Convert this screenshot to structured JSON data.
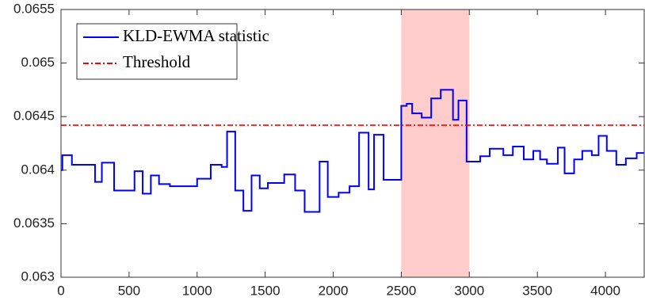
{
  "chart_data": {
    "type": "line",
    "xlim": [
      0,
      4285
    ],
    "ylim": [
      0.063,
      0.0655
    ],
    "xticks": [
      0,
      500,
      1000,
      1500,
      2000,
      2500,
      3000,
      3500,
      4000
    ],
    "yticks": [
      0.063,
      0.0635,
      0.064,
      0.0645,
      0.065,
      0.0655
    ],
    "highlight": {
      "xrange": [
        2500,
        3000
      ],
      "color": "#ffcccc"
    },
    "legend": "upper left",
    "series": [
      {
        "name": "KLD-EWMA statistic",
        "color": "#0000ff",
        "style": "solid",
        "x": [
          0,
          10,
          10,
          80,
          80,
          250,
          250,
          300,
          300,
          390,
          390,
          540,
          540,
          600,
          600,
          660,
          660,
          720,
          720,
          800,
          800,
          1000,
          1000,
          1100,
          1100,
          1180,
          1180,
          1220,
          1220,
          1280,
          1280,
          1340,
          1340,
          1400,
          1400,
          1460,
          1460,
          1520,
          1520,
          1640,
          1640,
          1720,
          1720,
          1790,
          1790,
          1900,
          1900,
          1960,
          1960,
          2040,
          2040,
          2120,
          2120,
          2190,
          2190,
          2260,
          2260,
          2300,
          2300,
          2370,
          2370,
          2500,
          2500,
          2540,
          2540,
          2580,
          2580,
          2650,
          2650,
          2720,
          2720,
          2790,
          2790,
          2880,
          2880,
          2920,
          2920,
          2980,
          2980,
          3080,
          3080,
          3150,
          3150,
          3250,
          3250,
          3320,
          3320,
          3400,
          3400,
          3470,
          3470,
          3520,
          3520,
          3570,
          3570,
          3650,
          3650,
          3700,
          3700,
          3770,
          3770,
          3830,
          3830,
          3900,
          3900,
          3950,
          3950,
          4010,
          4010,
          4080,
          4080,
          4150,
          4150,
          4230,
          4230,
          4285
        ],
        "values": [
          0.064,
          0.064,
          0.06414,
          0.06414,
          0.06405,
          0.06405,
          0.06389,
          0.06389,
          0.06407,
          0.06407,
          0.06381,
          0.06381,
          0.06399,
          0.06399,
          0.06378,
          0.06378,
          0.06395,
          0.06395,
          0.06387,
          0.06387,
          0.06385,
          0.06385,
          0.06392,
          0.06392,
          0.06405,
          0.06405,
          0.06403,
          0.06403,
          0.06436,
          0.06436,
          0.06381,
          0.06381,
          0.06362,
          0.06362,
          0.06395,
          0.06395,
          0.06383,
          0.06383,
          0.06388,
          0.06388,
          0.06396,
          0.06396,
          0.06381,
          0.06381,
          0.06361,
          0.06361,
          0.06408,
          0.06408,
          0.06375,
          0.06375,
          0.06379,
          0.06379,
          0.06385,
          0.06385,
          0.06435,
          0.06435,
          0.06382,
          0.06382,
          0.06433,
          0.06433,
          0.06391,
          0.06391,
          0.0646,
          0.0646,
          0.06462,
          0.06462,
          0.06453,
          0.06453,
          0.06449,
          0.06449,
          0.06467,
          0.06467,
          0.06475,
          0.06475,
          0.06447,
          0.06447,
          0.06465,
          0.06465,
          0.06408,
          0.06408,
          0.06413,
          0.06413,
          0.0642,
          0.0642,
          0.06414,
          0.06414,
          0.06422,
          0.06422,
          0.0641,
          0.0641,
          0.06418,
          0.06418,
          0.0641,
          0.0641,
          0.06406,
          0.06406,
          0.06421,
          0.06421,
          0.06397,
          0.06397,
          0.0641,
          0.0641,
          0.06418,
          0.06418,
          0.06414,
          0.06414,
          0.06432,
          0.06432,
          0.06418,
          0.06418,
          0.06405,
          0.06405,
          0.06411,
          0.06411,
          0.06416,
          0.06416
        ]
      },
      {
        "name": "Threshold",
        "color": "#ff0000",
        "style": "dashdot",
        "x": [
          0,
          4285
        ],
        "values": [
          0.06442,
          0.06442
        ]
      }
    ]
  }
}
